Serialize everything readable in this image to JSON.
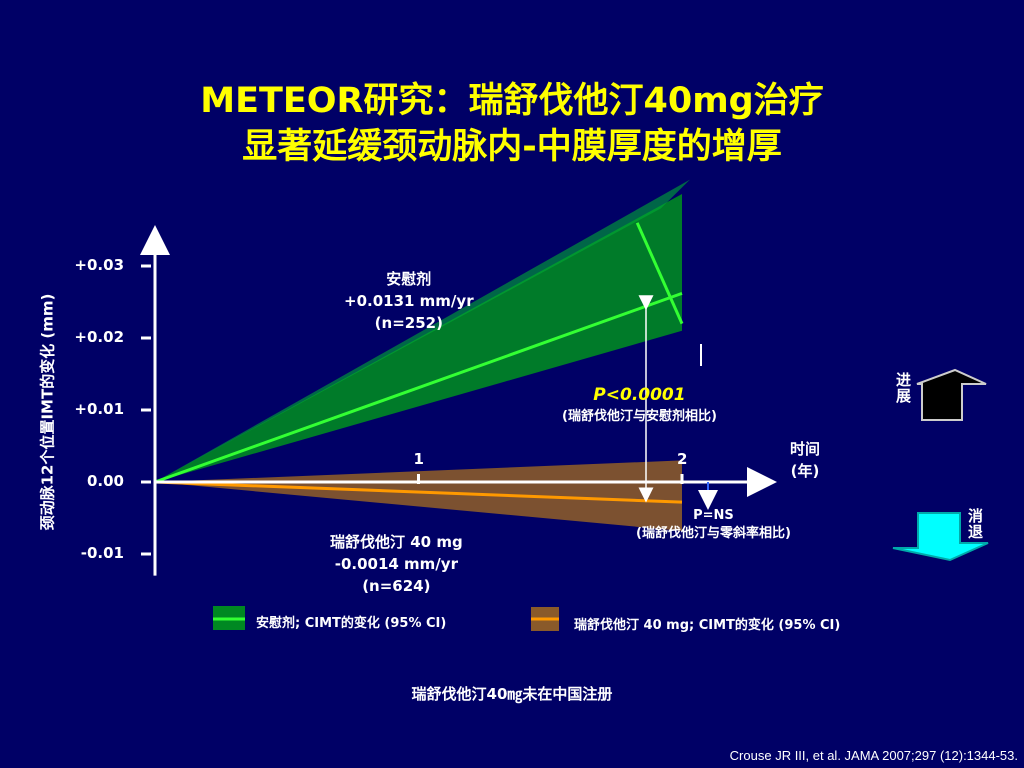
{
  "title": {
    "line1": "METEOR研究：瑞舒伐他汀40mg治疗",
    "line2": "显著延缓颈动脉内-中膜厚度的增厚"
  },
  "chart_data": {
    "type": "line",
    "ylabel": "颈动脉12个位置IMT的变化 (mm)",
    "xlabel": "时间",
    "xlabel_unit": "(年)",
    "y_ticks": [
      "+0.03",
      "+0.02",
      "+0.01",
      "0.00",
      "-0.01"
    ],
    "y_tick_values": [
      0.03,
      0.02,
      0.01,
      0.0,
      -0.01
    ],
    "x_ticks": [
      "1",
      "2"
    ],
    "x_tick_values": [
      1,
      2
    ],
    "ylim": [
      -0.01,
      0.03
    ],
    "xlim": [
      0,
      2
    ],
    "series": [
      {
        "name": "安慰剂",
        "rate_label": "+0.0131 mm/yr",
        "n_label": "(n=252)",
        "slope": 0.0131,
        "ci_upper_at_2": 0.04,
        "ci_lower_at_2": 0.021,
        "line_color": "#33ff33",
        "band_color": "#008822"
      },
      {
        "name": "瑞舒伐他汀 40 mg",
        "rate_label": "-0.0014 mm/yr",
        "n_label": "(n=624)",
        "slope": -0.0014,
        "ci_upper_at_2": 0.003,
        "ci_lower_at_2": -0.0068,
        "line_color": "#ff9900",
        "band_color": "#8a5a2a"
      }
    ],
    "annotations": {
      "p_main": "P<0.0001",
      "p_main_note": "(瑞舒伐他汀与安慰剂相比)",
      "p_ns": "P=NS",
      "p_ns_note": "(瑞舒伐他汀与零斜率相比)"
    },
    "legend": [
      {
        "label": "安慰剂; CIMT的变化 (95% CI)"
      },
      {
        "label": "瑞舒伐他汀 40 mg; CIMT的变化 (95% CI)"
      }
    ]
  },
  "side": {
    "progress": "进展",
    "regress": "消退"
  },
  "footer": "瑞舒伐他汀40㎎未在中国注册",
  "citation": "Crouse JR III, et al. JAMA 2007;297 (12):1344-53."
}
